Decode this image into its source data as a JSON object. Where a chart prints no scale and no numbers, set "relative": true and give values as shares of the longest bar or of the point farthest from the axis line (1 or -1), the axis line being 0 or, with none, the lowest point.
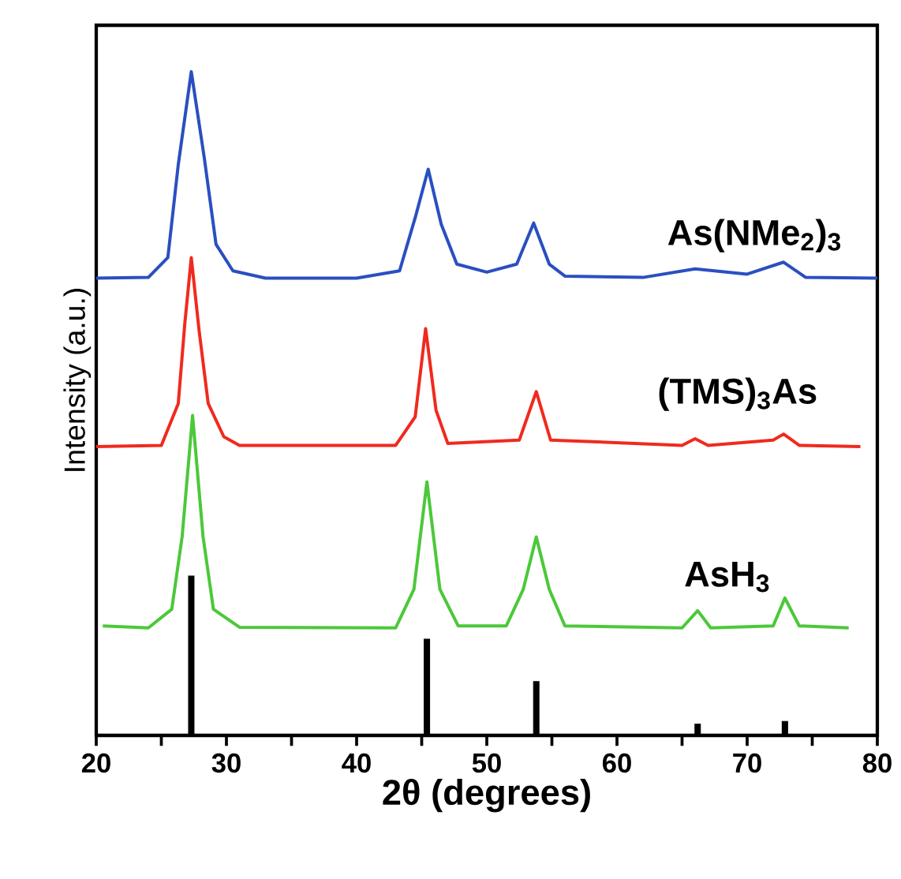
{
  "chart_data": {
    "type": "line",
    "relative": true,
    "xlabel": "2θ (degrees)",
    "ylabel": "Intensity (a.u.)",
    "xlim": [
      20,
      80
    ],
    "xticks": [
      20,
      {
        "value": 25,
        "label": null
      },
      30,
      {
        "value": 35,
        "label": null
      },
      40,
      {
        "value": 45,
        "label": null
      },
      50,
      {
        "value": 55,
        "label": null
      },
      60,
      {
        "value": 65,
        "label": null
      },
      70,
      {
        "value": 75,
        "label": null
      },
      80
    ],
    "tick_labels": "x",
    "series": [
      {
        "name": "As(NMe$_{2}$)$_{3}$",
        "color": "#2a4fc0",
        "x": [
          20,
          24,
          25.5,
          26.3,
          27.3,
          28.3,
          29.2,
          30.5,
          33,
          40,
          43.3,
          44.5,
          45.5,
          46.5,
          47.7,
          50,
          52.3,
          53.6,
          54.8,
          56,
          62,
          66,
          70,
          72.8,
          74.5,
          80
        ],
        "values": [
          0.689,
          0.69,
          0.72,
          0.86,
          1.0,
          0.87,
          0.74,
          0.7,
          0.689,
          0.689,
          0.7,
          0.78,
          0.853,
          0.77,
          0.71,
          0.698,
          0.71,
          0.772,
          0.71,
          0.692,
          0.69,
          0.703,
          0.695,
          0.713,
          0.69,
          0.689
        ]
      },
      {
        "name": "(TMS)$_{3}$As",
        "color": "#f02a1e",
        "x": [
          20,
          25,
          26.3,
          26.8,
          27.3,
          27.9,
          28.6,
          29.8,
          31,
          43,
          44.5,
          45.3,
          46.1,
          47,
          52.5,
          53.8,
          54.9,
          65,
          66,
          67,
          72,
          72.8,
          74,
          78.7
        ],
        "values": [
          0.435,
          0.437,
          0.5,
          0.62,
          0.72,
          0.61,
          0.5,
          0.45,
          0.437,
          0.437,
          0.48,
          0.613,
          0.49,
          0.44,
          0.445,
          0.518,
          0.445,
          0.437,
          0.447,
          0.437,
          0.445,
          0.454,
          0.437,
          0.435
        ]
      },
      {
        "name": "AsH$_{3}$",
        "color": "#4cc83a",
        "x": [
          20.5,
          24,
          25.8,
          26.6,
          27.4,
          28.2,
          29,
          31,
          43,
          44.4,
          45.4,
          46.4,
          47.8,
          51.5,
          52.8,
          53.8,
          54.8,
          56,
          65,
          66.2,
          67.2,
          72,
          72.9,
          74,
          77.8
        ],
        "values": [
          0.165,
          0.162,
          0.19,
          0.3,
          0.482,
          0.3,
          0.19,
          0.163,
          0.162,
          0.22,
          0.382,
          0.22,
          0.165,
          0.165,
          0.22,
          0.299,
          0.22,
          0.165,
          0.162,
          0.188,
          0.162,
          0.165,
          0.207,
          0.165,
          0.162
        ]
      },
      {
        "color": "#000000",
        "type": "bar",
        "x": [
          27.3,
          45.4,
          53.8,
          66.2,
          72.9
        ],
        "values": [
          0.24,
          0.145,
          0.081,
          0.017,
          0.021
        ]
      }
    ]
  }
}
